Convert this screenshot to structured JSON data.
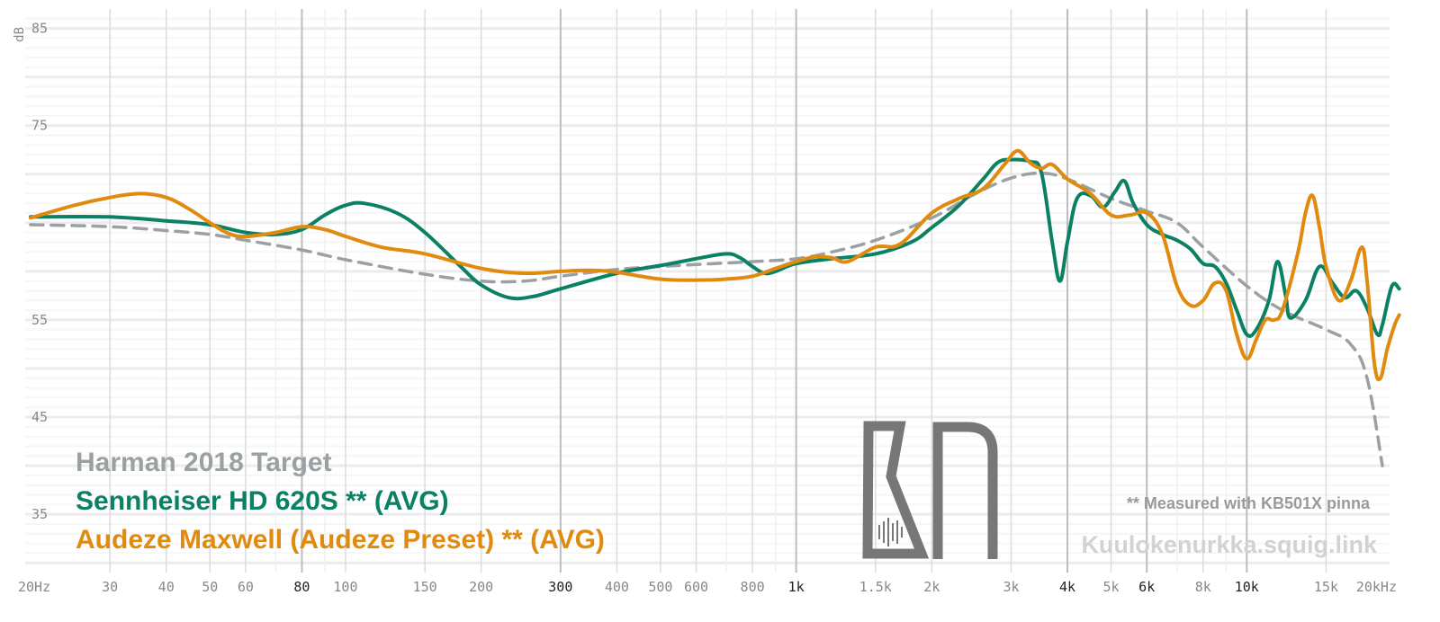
{
  "chart_data": {
    "type": "line",
    "ylabel": "dB",
    "xscale": "log",
    "xlim": [
      20,
      20000
    ],
    "ylim": [
      29,
      87
    ],
    "y_ticks": [
      {
        "value": 85,
        "label": "85"
      },
      {
        "value": 75,
        "label": "75"
      },
      {
        "value": 55,
        "label": "55"
      },
      {
        "value": 45,
        "label": "45"
      },
      {
        "value": 35,
        "label": "35"
      }
    ],
    "x_ticks": [
      {
        "value": 20,
        "label": "20Hz",
        "major": false
      },
      {
        "value": 30,
        "label": "30",
        "major": false
      },
      {
        "value": 40,
        "label": "40",
        "major": false
      },
      {
        "value": 50,
        "label": "50",
        "major": false
      },
      {
        "value": 60,
        "label": "60",
        "major": false
      },
      {
        "value": 80,
        "label": "80",
        "major": true
      },
      {
        "value": 100,
        "label": "100",
        "major": false
      },
      {
        "value": 150,
        "label": "150",
        "major": false
      },
      {
        "value": 200,
        "label": "200",
        "major": false
      },
      {
        "value": 300,
        "label": "300",
        "major": true
      },
      {
        "value": 400,
        "label": "400",
        "major": false
      },
      {
        "value": 500,
        "label": "500",
        "major": false
      },
      {
        "value": 600,
        "label": "600",
        "major": false
      },
      {
        "value": 800,
        "label": "800",
        "major": false
      },
      {
        "value": 1000,
        "label": "1k",
        "major": true
      },
      {
        "value": 1500,
        "label": "1.5k",
        "major": false
      },
      {
        "value": 2000,
        "label": "2k",
        "major": false
      },
      {
        "value": 3000,
        "label": "3k",
        "major": false
      },
      {
        "value": 4000,
        "label": "4k",
        "major": true
      },
      {
        "value": 5000,
        "label": "5k",
        "major": false
      },
      {
        "value": 6000,
        "label": "6k",
        "major": true
      },
      {
        "value": 8000,
        "label": "8k",
        "major": false
      },
      {
        "value": 10000,
        "label": "10k",
        "major": true
      },
      {
        "value": 15000,
        "label": "15k",
        "major": false
      },
      {
        "value": 20000,
        "label": "20kHz",
        "major": false
      }
    ],
    "series": [
      {
        "name": "Harman 2018 Target",
        "color": "#9aa1a3",
        "dashed": true,
        "points": [
          [
            20,
            64.8
          ],
          [
            30,
            64.6
          ],
          [
            40,
            64.2
          ],
          [
            50,
            63.8
          ],
          [
            60,
            63.2
          ],
          [
            80,
            62.2
          ],
          [
            100,
            61.2
          ],
          [
            150,
            59.7
          ],
          [
            200,
            59.0
          ],
          [
            250,
            59.0
          ],
          [
            300,
            59.5
          ],
          [
            400,
            60.2
          ],
          [
            500,
            60.5
          ],
          [
            600,
            60.7
          ],
          [
            800,
            61.0
          ],
          [
            1000,
            61.3
          ],
          [
            1200,
            62.0
          ],
          [
            1500,
            63.2
          ],
          [
            2000,
            65.5
          ],
          [
            2500,
            68.0
          ],
          [
            3000,
            69.6
          ],
          [
            3500,
            70.1
          ],
          [
            4000,
            69.5
          ],
          [
            5000,
            67.5
          ],
          [
            6000,
            66.2
          ],
          [
            7000,
            65.0
          ],
          [
            8000,
            62.5
          ],
          [
            10000,
            58.5
          ],
          [
            12000,
            56.0
          ],
          [
            15000,
            54.0
          ],
          [
            17000,
            52.5
          ],
          [
            18500,
            49.0
          ],
          [
            20000,
            40.0
          ]
        ]
      },
      {
        "name": "Sennheiser HD 620S ** (AVG)",
        "color": "#0b8163",
        "dashed": false,
        "points": [
          [
            20,
            65.6
          ],
          [
            30,
            65.6
          ],
          [
            40,
            65.2
          ],
          [
            50,
            64.8
          ],
          [
            60,
            64.0
          ],
          [
            70,
            63.8
          ],
          [
            80,
            64.3
          ],
          [
            90,
            65.8
          ],
          [
            100,
            66.8
          ],
          [
            110,
            67.0
          ],
          [
            130,
            66.0
          ],
          [
            150,
            64.0
          ],
          [
            180,
            60.5
          ],
          [
            200,
            58.6
          ],
          [
            230,
            57.3
          ],
          [
            260,
            57.4
          ],
          [
            300,
            58.2
          ],
          [
            400,
            59.8
          ],
          [
            500,
            60.6
          ],
          [
            600,
            61.3
          ],
          [
            700,
            61.8
          ],
          [
            750,
            61.4
          ],
          [
            800,
            60.5
          ],
          [
            850,
            59.8
          ],
          [
            900,
            60.0
          ],
          [
            1000,
            60.8
          ],
          [
            1200,
            61.3
          ],
          [
            1500,
            61.8
          ],
          [
            1800,
            63.0
          ],
          [
            2000,
            64.5
          ],
          [
            2300,
            66.8
          ],
          [
            2600,
            69.5
          ],
          [
            2800,
            71.2
          ],
          [
            3000,
            71.5
          ],
          [
            3300,
            71.3
          ],
          [
            3500,
            70.2
          ],
          [
            3700,
            63.0
          ],
          [
            3850,
            59.0
          ],
          [
            4000,
            63.0
          ],
          [
            4200,
            67.5
          ],
          [
            4500,
            67.8
          ],
          [
            4800,
            66.6
          ],
          [
            5100,
            68.2
          ],
          [
            5350,
            69.3
          ],
          [
            5600,
            67.0
          ],
          [
            6000,
            64.8
          ],
          [
            6500,
            63.8
          ],
          [
            7000,
            63.2
          ],
          [
            7500,
            62.3
          ],
          [
            8000,
            60.8
          ],
          [
            8500,
            60.5
          ],
          [
            9000,
            58.8
          ],
          [
            9500,
            56.0
          ],
          [
            10000,
            53.5
          ],
          [
            10500,
            54.0
          ],
          [
            11200,
            57.0
          ],
          [
            11700,
            61.0
          ],
          [
            12200,
            57.5
          ],
          [
            12500,
            55.2
          ],
          [
            13500,
            57.0
          ],
          [
            14500,
            60.5
          ],
          [
            15500,
            58.8
          ],
          [
            16500,
            57.3
          ],
          [
            17500,
            58.0
          ],
          [
            18500,
            56.2
          ],
          [
            19500,
            53.5
          ],
          [
            20000,
            54.5
          ],
          [
            21000,
            58.5
          ],
          [
            21800,
            58.2
          ]
        ]
      },
      {
        "name": "Audeze Maxwell (Audeze Preset) ** (AVG)",
        "color": "#e08a10",
        "dashed": false,
        "points": [
          [
            20,
            65.5
          ],
          [
            25,
            66.8
          ],
          [
            30,
            67.6
          ],
          [
            35,
            68.0
          ],
          [
            40,
            67.6
          ],
          [
            45,
            66.4
          ],
          [
            50,
            65.0
          ],
          [
            55,
            63.9
          ],
          [
            60,
            63.6
          ],
          [
            70,
            64.0
          ],
          [
            80,
            64.6
          ],
          [
            90,
            64.3
          ],
          [
            100,
            63.6
          ],
          [
            120,
            62.5
          ],
          [
            150,
            61.8
          ],
          [
            200,
            60.3
          ],
          [
            250,
            59.8
          ],
          [
            300,
            60.0
          ],
          [
            350,
            60.1
          ],
          [
            400,
            59.9
          ],
          [
            500,
            59.2
          ],
          [
            600,
            59.1
          ],
          [
            700,
            59.2
          ],
          [
            800,
            59.5
          ],
          [
            900,
            60.3
          ],
          [
            1000,
            61.0
          ],
          [
            1100,
            61.5
          ],
          [
            1200,
            61.4
          ],
          [
            1300,
            61.0
          ],
          [
            1500,
            62.5
          ],
          [
            1700,
            62.8
          ],
          [
            2000,
            66.0
          ],
          [
            2300,
            67.5
          ],
          [
            2600,
            68.5
          ],
          [
            2900,
            71.0
          ],
          [
            3100,
            72.4
          ],
          [
            3300,
            71.2
          ],
          [
            3500,
            70.6
          ],
          [
            3700,
            71.0
          ],
          [
            4000,
            69.5
          ],
          [
            4500,
            68.0
          ],
          [
            5000,
            65.8
          ],
          [
            5500,
            65.8
          ],
          [
            6000,
            66.0
          ],
          [
            6500,
            63.8
          ],
          [
            7000,
            58.5
          ],
          [
            7500,
            56.5
          ],
          [
            8000,
            57.0
          ],
          [
            8500,
            58.8
          ],
          [
            9000,
            58.0
          ],
          [
            9500,
            53.5
          ],
          [
            10000,
            51.0
          ],
          [
            10500,
            53.0
          ],
          [
            11000,
            55.0
          ],
          [
            11500,
            55.0
          ],
          [
            12000,
            56.0
          ],
          [
            13000,
            62.0
          ],
          [
            13500,
            66.0
          ],
          [
            14000,
            67.8
          ],
          [
            14500,
            64.5
          ],
          [
            15000,
            60.5
          ],
          [
            16000,
            57.0
          ],
          [
            17000,
            59.0
          ],
          [
            18000,
            62.5
          ],
          [
            18500,
            59.0
          ],
          [
            19200,
            50.5
          ],
          [
            19800,
            49.0
          ],
          [
            20500,
            52.0
          ],
          [
            21300,
            54.5
          ],
          [
            21800,
            55.5
          ]
        ]
      }
    ],
    "legend": {
      "placement": "bottom-left",
      "entries": [
        {
          "label": "Harman 2018 Target",
          "color": "#9aa1a3"
        },
        {
          "label": "Sennheiser HD 620S ** (AVG)",
          "color": "#0b8163"
        },
        {
          "label": "Audeze Maxwell (Audeze Preset) ** (AVG)",
          "color": "#e08a10"
        }
      ]
    },
    "annotations": {
      "note": "** Measured with KB501X pinna",
      "site": "Kuulokenurkka.squig.link"
    }
  }
}
